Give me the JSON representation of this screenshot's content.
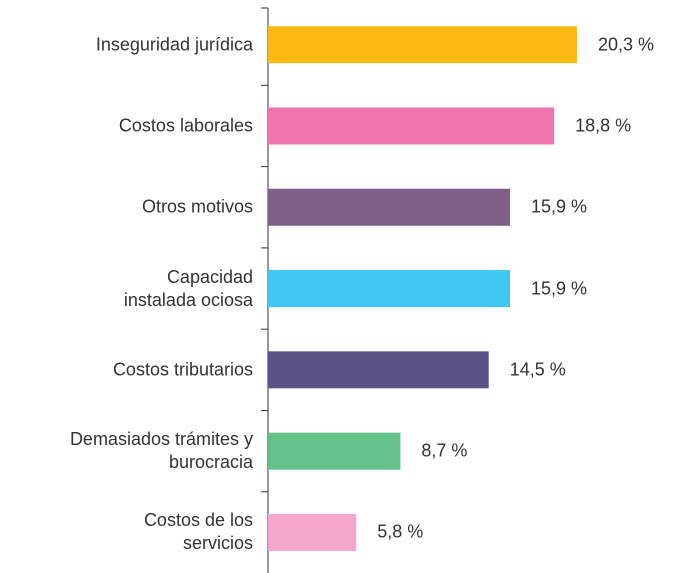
{
  "chart_data": {
    "type": "barh",
    "categories": [
      "Inseguridad jurídica",
      "Costos laborales",
      "Otros motivos",
      "Capacidad\ninstalada ociosa",
      "Costos tributarios",
      "Demasiados trámites y\nburocracia",
      "Costos de los\nservicios"
    ],
    "values": [
      20.3,
      18.8,
      15.9,
      15.9,
      14.5,
      8.7,
      5.8
    ],
    "value_labels": [
      "20,3 %",
      "18,8 %",
      "15,9 %",
      "15,9 %",
      "14,5 %",
      "8,7 %",
      "5,8 %"
    ],
    "colors": [
      "#FDB913",
      "#F075AC",
      "#7F5F88",
      "#40C8F4",
      "#5B5287",
      "#62C28A",
      "#F4A7CB"
    ]
  }
}
